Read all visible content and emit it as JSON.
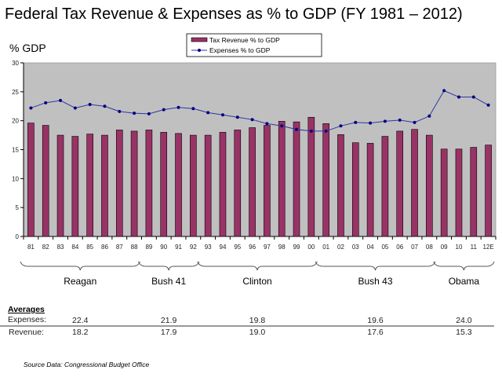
{
  "chart_data": {
    "type": "bar",
    "title": "Federal Tax Revenue & Expenses as % to GDP (FY 1981 – 2012)",
    "ylabel": "% GDP",
    "xlabel": "",
    "ylim": [
      0,
      30
    ],
    "yticks": [
      0,
      5,
      10,
      15,
      20,
      25,
      30
    ],
    "grid": false,
    "legend_position": "top-center",
    "plot_background": "#c0c0c0",
    "categories": [
      "81",
      "82",
      "83",
      "84",
      "85",
      "86",
      "87",
      "88",
      "89",
      "90",
      "91",
      "92",
      "93",
      "94",
      "95",
      "96",
      "97",
      "98",
      "99",
      "00",
      "01",
      "02",
      "03",
      "04",
      "05",
      "06",
      "07",
      "08",
      "09",
      "10",
      "11",
      "12E"
    ],
    "series": [
      {
        "name": "Tax Revenue % to GDP",
        "kind": "bar",
        "color": "#993366",
        "values": [
          19.6,
          19.2,
          17.5,
          17.3,
          17.7,
          17.5,
          18.4,
          18.2,
          18.4,
          18.0,
          17.8,
          17.5,
          17.5,
          18.0,
          18.4,
          18.8,
          19.2,
          19.9,
          19.8,
          20.6,
          19.5,
          17.6,
          16.2,
          16.1,
          17.3,
          18.2,
          18.5,
          17.5,
          15.1,
          15.1,
          15.4,
          15.8
        ]
      },
      {
        "name": "Expenses % to GDP",
        "kind": "line",
        "color": "#000080",
        "values": [
          22.2,
          23.1,
          23.5,
          22.2,
          22.8,
          22.5,
          21.6,
          21.3,
          21.2,
          21.9,
          22.3,
          22.1,
          21.4,
          21.0,
          20.6,
          20.2,
          19.5,
          19.1,
          18.5,
          18.2,
          18.2,
          19.1,
          19.7,
          19.6,
          19.9,
          20.1,
          19.7,
          20.8,
          25.2,
          24.1,
          24.1,
          22.7
        ]
      }
    ],
    "annotations": {
      "presidencies": [
        {
          "name": "Reagan",
          "from": "81",
          "to": "88"
        },
        {
          "name": "Bush 41",
          "from": "89",
          "to": "92"
        },
        {
          "name": "Clinton",
          "from": "93",
          "to": "00"
        },
        {
          "name": "Bush 43",
          "from": "01",
          "to": "08"
        },
        {
          "name": "Obama",
          "from": "09",
          "to": "12E"
        }
      ],
      "averages": {
        "heading": "Averages",
        "expenses_label": "Expenses:",
        "revenue_label": "Revenue:",
        "expenses": [
          "22.4",
          "21.9",
          "19.8",
          "19.6",
          "24.0"
        ],
        "revenue": [
          "18.2",
          "17.9",
          "19.0",
          "17.6",
          "15.3"
        ]
      },
      "source": "Source Data:  Congressional Budget Office"
    }
  }
}
